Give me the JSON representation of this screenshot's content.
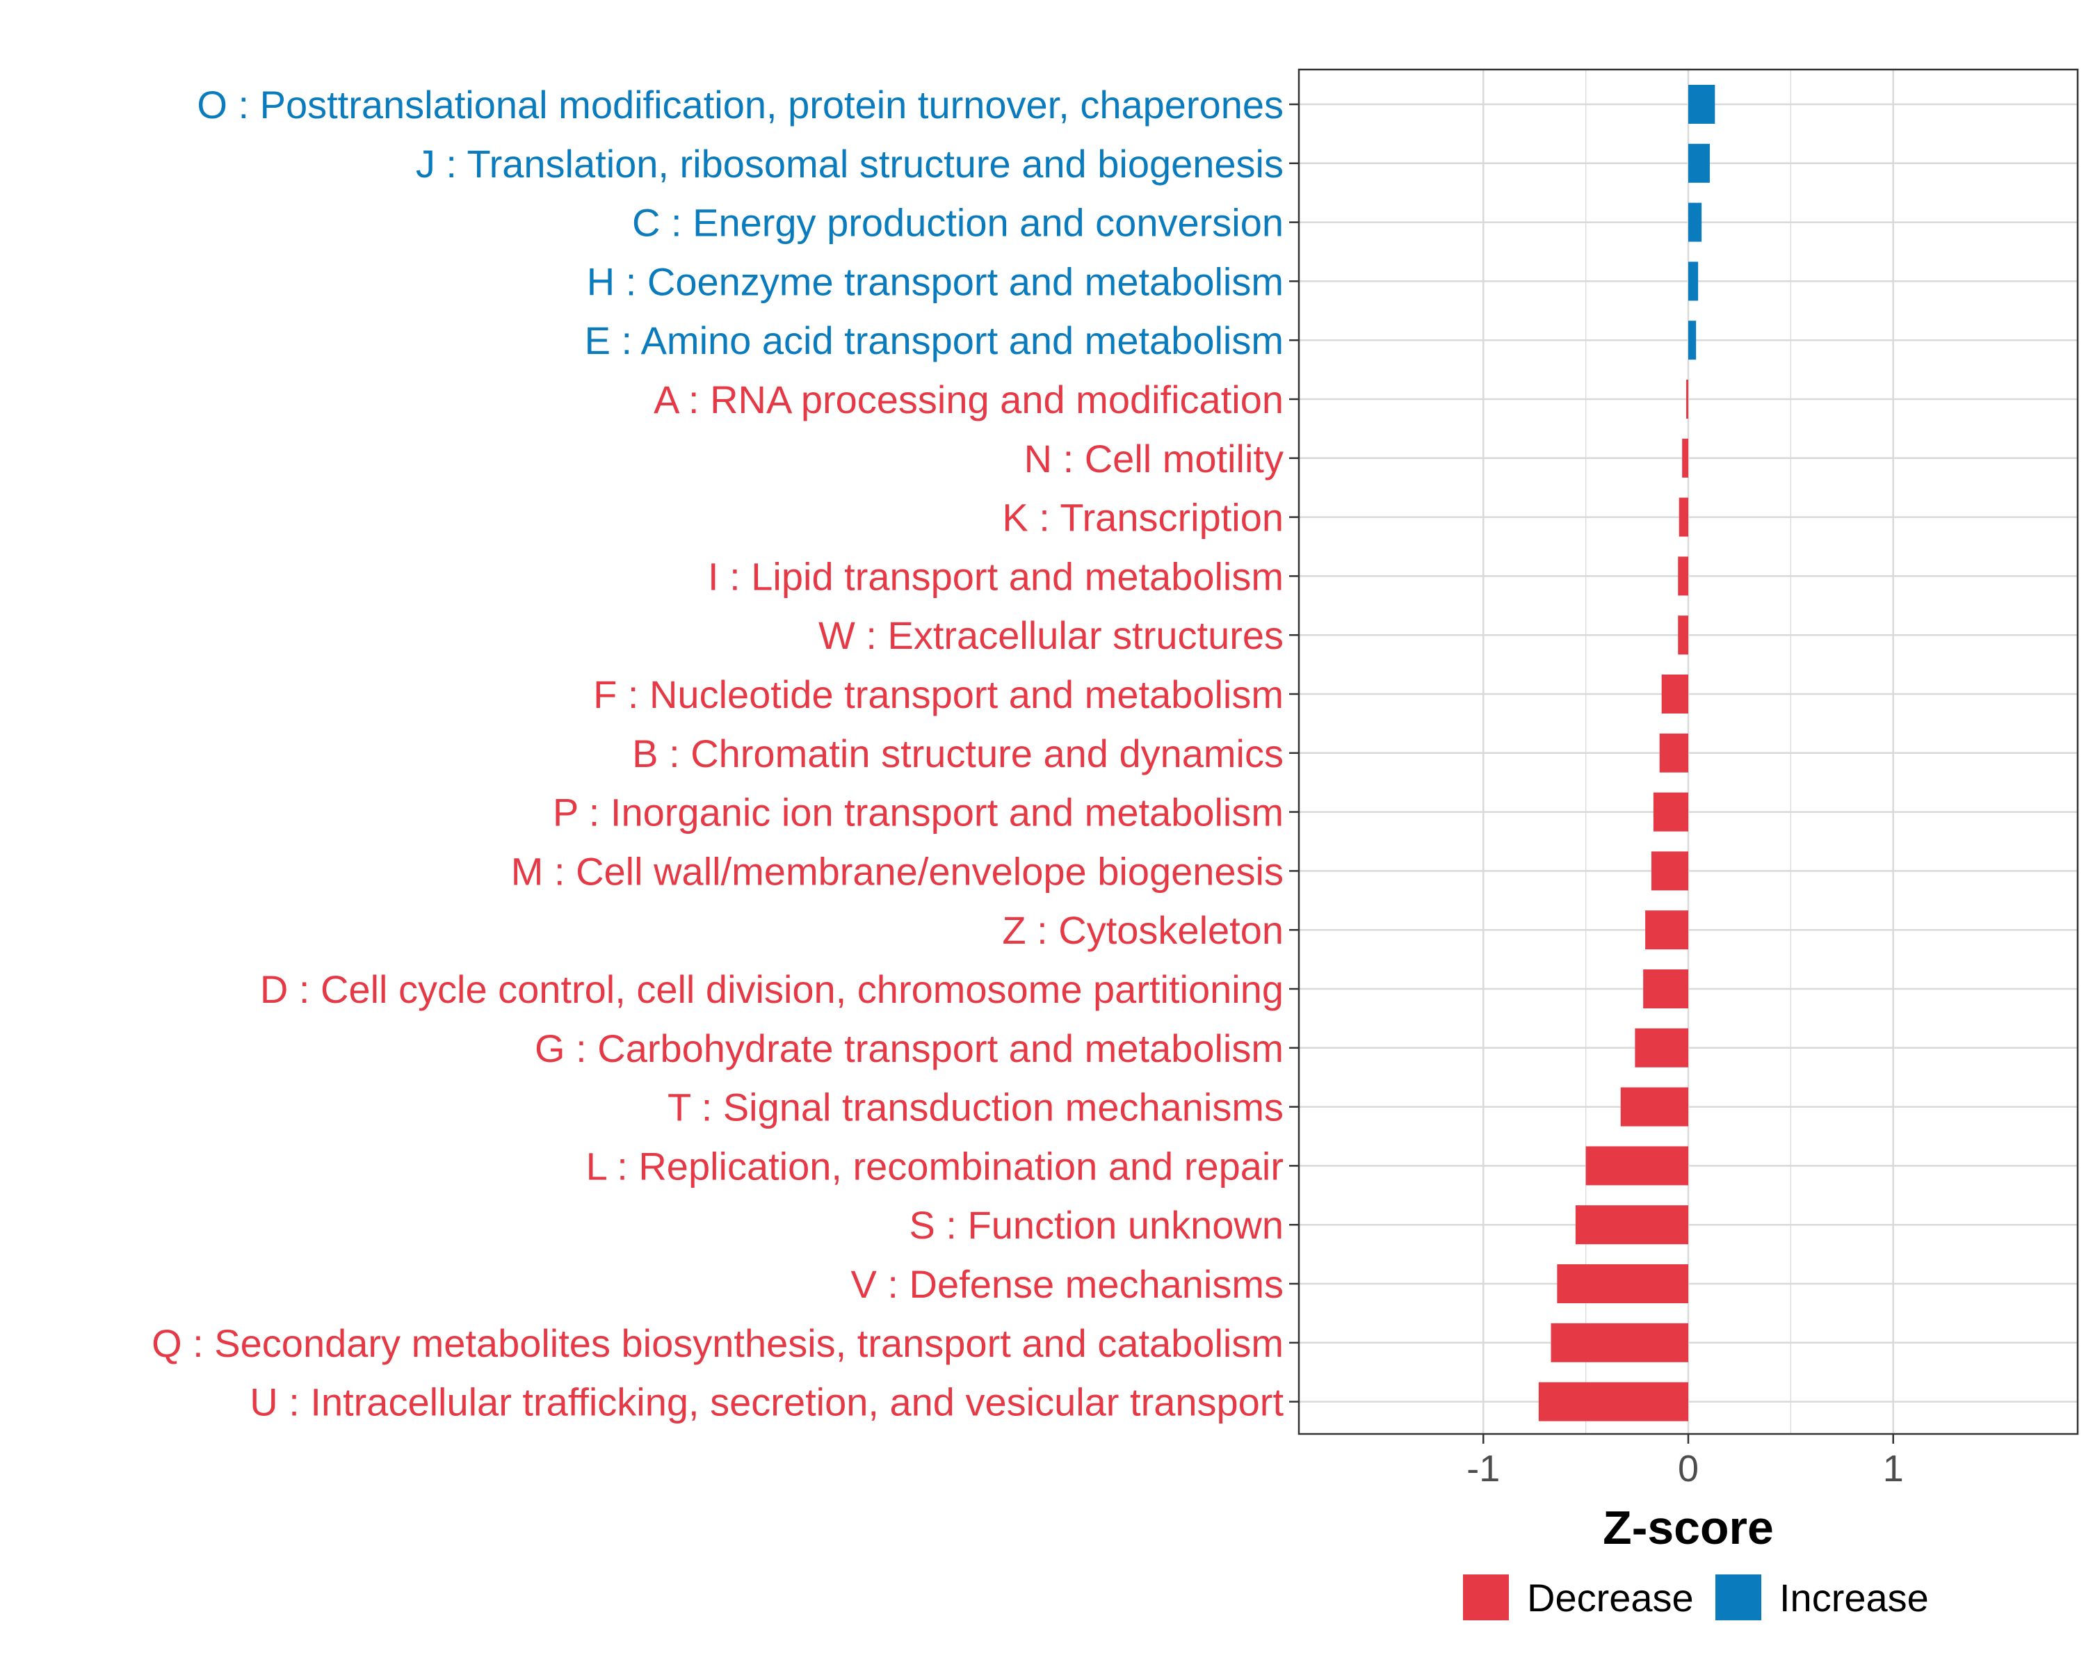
{
  "chart_data": {
    "type": "bar",
    "orientation": "horizontal",
    "title": "",
    "xlabel": "Z-score",
    "ylabel": "",
    "xlim": [
      -1.9,
      1.9
    ],
    "xticks": [
      -1,
      0,
      1
    ],
    "xtick_labels": [
      "-1",
      "0",
      "1"
    ],
    "grid": true,
    "legend_position": "bottom",
    "colors": {
      "Decrease": "#e63946",
      "Increase": "#0a7bbd",
      "gridline": "#d9d9d9",
      "frame": "#333333"
    },
    "legend": [
      {
        "label": "Decrease",
        "color": "#e63946"
      },
      {
        "label": "Increase",
        "color": "#0a7bbd"
      }
    ],
    "categories": [
      {
        "label": "O : Posttranslational modification, protein turnover, chaperones",
        "value": 0.13,
        "direction": "Increase"
      },
      {
        "label": "J : Translation, ribosomal structure and biogenesis",
        "value": 0.105,
        "direction": "Increase"
      },
      {
        "label": "C : Energy production and conversion",
        "value": 0.065,
        "direction": "Increase"
      },
      {
        "label": "H : Coenzyme transport and metabolism",
        "value": 0.048,
        "direction": "Increase"
      },
      {
        "label": "E : Amino acid transport and metabolism",
        "value": 0.038,
        "direction": "Increase"
      },
      {
        "label": "A : RNA processing and modification",
        "value": -0.01,
        "direction": "Decrease"
      },
      {
        "label": "N : Cell motility",
        "value": -0.03,
        "direction": "Decrease"
      },
      {
        "label": "K : Transcription",
        "value": -0.045,
        "direction": "Decrease"
      },
      {
        "label": "I : Lipid transport and metabolism",
        "value": -0.05,
        "direction": "Decrease"
      },
      {
        "label": "W : Extracellular structures",
        "value": -0.05,
        "direction": "Decrease"
      },
      {
        "label": "F : Nucleotide transport and metabolism",
        "value": -0.13,
        "direction": "Decrease"
      },
      {
        "label": "B : Chromatin structure and dynamics",
        "value": -0.14,
        "direction": "Decrease"
      },
      {
        "label": "P : Inorganic ion transport and metabolism",
        "value": -0.17,
        "direction": "Decrease"
      },
      {
        "label": "M : Cell wall/membrane/envelope biogenesis",
        "value": -0.18,
        "direction": "Decrease"
      },
      {
        "label": "Z : Cytoskeleton",
        "value": -0.21,
        "direction": "Decrease"
      },
      {
        "label": "D : Cell cycle control, cell division, chromosome partitioning",
        "value": -0.22,
        "direction": "Decrease"
      },
      {
        "label": "G : Carbohydrate transport and metabolism",
        "value": -0.26,
        "direction": "Decrease"
      },
      {
        "label": "T : Signal transduction mechanisms",
        "value": -0.33,
        "direction": "Decrease"
      },
      {
        "label": "L : Replication, recombination and repair",
        "value": -0.5,
        "direction": "Decrease"
      },
      {
        "label": "S : Function unknown",
        "value": -0.55,
        "direction": "Decrease"
      },
      {
        "label": "V : Defense mechanisms",
        "value": -0.64,
        "direction": "Decrease"
      },
      {
        "label": "Q : Secondary metabolites biosynthesis, transport and catabolism",
        "value": -0.67,
        "direction": "Decrease"
      },
      {
        "label": "U : Intracellular trafficking, secretion, and vesicular transport",
        "value": -0.73,
        "direction": "Decrease"
      }
    ]
  }
}
